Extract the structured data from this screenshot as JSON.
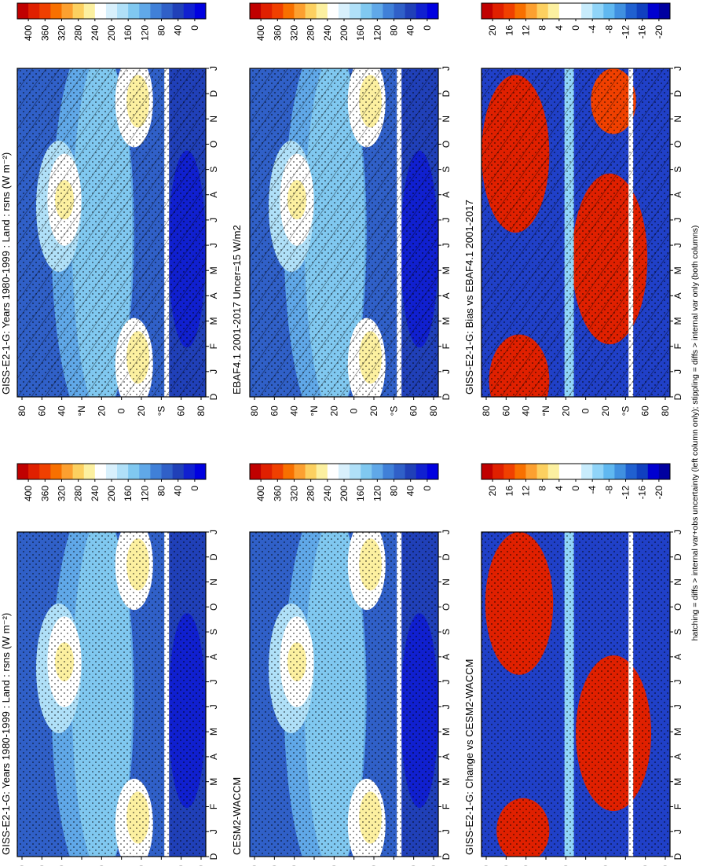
{
  "figure": {
    "footnote": "hatching = diffs > internal var+obs uncertainty (left column only); stippling = diffs > internal var only (both columns)"
  },
  "months": [
    "D",
    "J",
    "F",
    "M",
    "A",
    "M",
    "J",
    "J",
    "A",
    "S",
    "O",
    "N",
    "D",
    "J"
  ],
  "lat_ticks": [
    "80",
    "60",
    "40",
    "°N",
    "20",
    "0",
    "20",
    "°S",
    "60",
    "80"
  ],
  "colorbars": {
    "absolute": {
      "labels": [
        "400",
        "360",
        "320",
        "280",
        "240",
        "200",
        "160",
        "120",
        "80",
        "40",
        "0"
      ],
      "colors": [
        "#c00000",
        "#e02000",
        "#f04000",
        "#f87000",
        "#fca030",
        "#fcd060",
        "#fcf0a0",
        "#ffffff",
        "#d8f0fc",
        "#b0e0f8",
        "#80c8f0",
        "#60a8e8",
        "#4080d8",
        "#3060c8",
        "#2040b8",
        "#1020d0",
        "#0000e0"
      ]
    },
    "difference": {
      "labels": [
        "20",
        "16",
        "12",
        "8",
        "4",
        "0",
        "-4",
        "-8",
        "-12",
        "-16",
        "-20"
      ],
      "colors": [
        "#c00000",
        "#e02000",
        "#f04000",
        "#f87000",
        "#fca030",
        "#fcd060",
        "#fcf0a0",
        "#ffffff",
        "#ffffff",
        "#c8ecfc",
        "#90d4f8",
        "#60b8f0",
        "#4090e0",
        "#2060d0",
        "#1040c0",
        "#0000d0",
        "#0000a0"
      ]
    }
  },
  "panels": [
    {
      "id": "left-top",
      "title": "GISS-E2-1-G: Years 1980-1999 : Land : rsns (W m⁻²)",
      "kind": "absolute",
      "variant": "model",
      "hatching": true,
      "stippling": true
    },
    {
      "id": "left-middle",
      "title": "EBAF4.1 2001-2017 Uncer=15 W/m2",
      "kind": "absolute",
      "variant": "obs",
      "hatching": true,
      "stippling": true
    },
    {
      "id": "left-bottom",
      "title": "GISS-E2-1-G: Bias vs EBAF4.1 2001-2017",
      "kind": "difference",
      "variant": "bias",
      "hatching": true,
      "stippling": true
    },
    {
      "id": "right-top",
      "title": "GISS-E2-1-G: Years 1980-1999 : Land : rsns (W m⁻²)",
      "kind": "absolute",
      "variant": "model",
      "hatching": false,
      "stippling": true
    },
    {
      "id": "right-middle",
      "title": "CESM2-WACCM",
      "kind": "absolute",
      "variant": "obs",
      "hatching": false,
      "stippling": true
    },
    {
      "id": "right-bottom",
      "title": "GISS-E2-1-G: Change vs CESM2-WACCM",
      "kind": "difference",
      "variant": "change",
      "hatching": false,
      "stippling": true
    }
  ],
  "chart_data": {
    "type": "heatmap",
    "x_axis": {
      "label": "",
      "ticks": [
        "D",
        "J",
        "F",
        "M",
        "A",
        "M",
        "J",
        "J",
        "A",
        "S",
        "O",
        "N",
        "D",
        "J"
      ]
    },
    "y_axis": {
      "label": "",
      "ticks": [
        "80",
        "60",
        "40",
        "°N",
        "20",
        "0",
        "20",
        "°S",
        "60",
        "80"
      ]
    },
    "color_scales": {
      "absolute_W_m2": {
        "min": 0,
        "max": 400,
        "step": 40
      },
      "difference_W_m2": {
        "min": -20,
        "max": 20,
        "step": 4
      }
    },
    "panels": [
      {
        "title": "GISS-E2-1-G: Years 1980-1999 : Land : rsns (W m⁻²)",
        "scale": "absolute_W_m2"
      },
      {
        "title": "EBAF4.1 2001-2017 Uncer=15 W/m2",
        "scale": "absolute_W_m2"
      },
      {
        "title": "GISS-E2-1-G: Bias vs EBAF4.1 2001-2017",
        "scale": "difference_W_m2"
      },
      {
        "title": "GISS-E2-1-G: Years 1980-1999 : Land : rsns (W m⁻²)",
        "scale": "absolute_W_m2"
      },
      {
        "title": "CESM2-WACCM",
        "scale": "absolute_W_m2"
      },
      {
        "title": "GISS-E2-1-G: Change vs CESM2-WACCM",
        "scale": "difference_W_m2"
      }
    ]
  }
}
